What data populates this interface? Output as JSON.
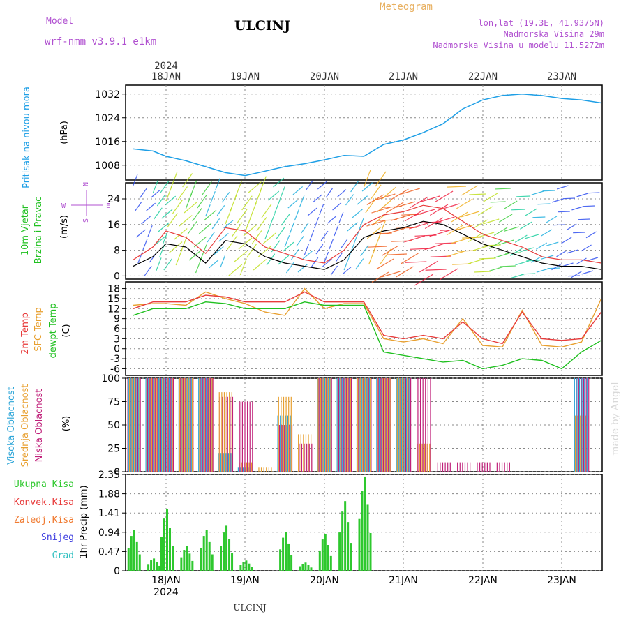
{
  "header": {
    "model_label": "Model",
    "model_name": "wrf-nmm_v3.9.1 e1km",
    "title": "ULCINJ",
    "meteogram": "Meteogram",
    "lonlat": "lon,lat (19.3E, 41.9375N)",
    "altitude": "Nadmorska Visina 29m",
    "model_altitude": "Nadmorska Visina u modelu 11.5272m"
  },
  "footer": {
    "station": "ULCINJ",
    "watermark": "made by Angel"
  },
  "time_axis": {
    "year": "2024",
    "days": [
      "18JAN",
      "19JAN",
      "20JAN",
      "21JAN",
      "22JAN",
      "23JAN"
    ]
  },
  "panels": {
    "pressure": {
      "label": "Pritisak na nivou mora",
      "unit": "(hPa)"
    },
    "wind": {
      "label1": "10m Vjetar",
      "label2": "Brzina i Pravac",
      "unit": "(m/s)",
      "compass_n": "N",
      "compass_e": "E",
      "compass_w": "W",
      "compass_s": "S"
    },
    "temp": {
      "label1": "2m Temp",
      "label2": "SFC Temp",
      "label3": "dewpt Temp",
      "unit": "(C)"
    },
    "cloud": {
      "label1": "Visoka Oblacnost",
      "label2": "Srednja Oblacnost",
      "label3": "Niska Oblacnost",
      "unit": "(%)"
    },
    "precip": {
      "unit": "1hr Precip (mm)",
      "legend": [
        "Ukupna Kisa",
        "Konvek.Kisa",
        "Zaledj.Kisa",
        "Snijeg",
        "Grad"
      ]
    }
  },
  "colors": {
    "pressure": "#1e9fe6",
    "temp2m": "#e83c3c",
    "sfc": "#e8a030",
    "dew": "#20c020",
    "high_cloud": "#2ea6d8",
    "mid_cloud": "#e8a030",
    "low_cloud": "#c0207a",
    "total_rain": "#2ec82e",
    "conv_rain": "#c84040",
    "frz_rain": "#f07a30",
    "snow": "#4040e0",
    "hail": "#30c0c0"
  },
  "chart_data": [
    {
      "type": "line",
      "title": "Pritisak na nivou mora",
      "ylabel": "(hPa)",
      "ylim": [
        1003,
        1035
      ],
      "yticks": [
        1008,
        1016,
        1024,
        1032
      ],
      "x": [
        "17JAN 14:00",
        "17JAN 20:00",
        "18JAN 00:00",
        "18JAN 06:00",
        "18JAN 12:00",
        "18JAN 18:00",
        "19JAN 00:00",
        "19JAN 06:00",
        "19JAN 12:00",
        "19JAN 18:00",
        "20JAN 00:00",
        "20JAN 06:00",
        "20JAN 12:00",
        "20JAN 18:00",
        "21JAN 00:00",
        "21JAN 06:00",
        "21JAN 12:00",
        "21JAN 18:00",
        "22JAN 00:00",
        "22JAN 06:00",
        "22JAN 12:00",
        "22JAN 18:00",
        "23JAN 00:00",
        "23JAN 06:00",
        "23JAN 12:00"
      ],
      "series": [
        {
          "name": "Pritisak na nivou mora",
          "values": [
            1013.5,
            1012.8,
            1011,
            1009.5,
            1007.5,
            1005.5,
            1004.5,
            1006,
            1007.5,
            1008.5,
            1009.8,
            1011.3,
            1011,
            1015,
            1016.5,
            1019,
            1022,
            1027,
            1030,
            1031.5,
            1032,
            1031.5,
            1030.5,
            1030,
            1029
          ]
        }
      ]
    },
    {
      "type": "line",
      "title": "10m Vjetar Brzina i Pravac",
      "ylabel": "(m/s)",
      "ylim": [
        -1,
        29
      ],
      "yticks": [
        0,
        8,
        16,
        24
      ],
      "x": [
        "17JAN 14:00",
        "17JAN 20:00",
        "18JAN 00:00",
        "18JAN 06:00",
        "18JAN 12:00",
        "18JAN 18:00",
        "19JAN 00:00",
        "19JAN 06:00",
        "19JAN 12:00",
        "19JAN 18:00",
        "20JAN 00:00",
        "20JAN 06:00",
        "20JAN 12:00",
        "20JAN 18:00",
        "21JAN 00:00",
        "21JAN 06:00",
        "21JAN 12:00",
        "21JAN 18:00",
        "22JAN 00:00",
        "22JAN 06:00",
        "22JAN 12:00",
        "22JAN 18:00",
        "23JAN 00:00",
        "23JAN 06:00",
        "23JAN 12:00"
      ],
      "series": [
        {
          "name": "Brzina",
          "values": [
            3,
            6,
            10,
            9,
            4,
            11,
            10,
            6,
            4,
            3,
            2,
            5,
            12,
            14,
            15,
            17,
            16,
            13,
            10,
            8,
            6,
            4,
            3,
            3,
            2
          ]
        },
        {
          "name": "Udari",
          "values": [
            5,
            9,
            14,
            12,
            7,
            15,
            14,
            9,
            7,
            5,
            4,
            8,
            16,
            19,
            20,
            22,
            21,
            17,
            13,
            11,
            9,
            6,
            5,
            5,
            4
          ]
        }
      ]
    },
    {
      "type": "line",
      "title": "2m Temp / SFC Temp / dewpt Temp",
      "ylabel": "(C)",
      "ylim": [
        -8,
        20
      ],
      "yticks": [
        -6,
        -3,
        0,
        3,
        6,
        9,
        12,
        15,
        18
      ],
      "x": [
        "17JAN 14:00",
        "17JAN 20:00",
        "18JAN 00:00",
        "18JAN 06:00",
        "18JAN 12:00",
        "18JAN 18:00",
        "19JAN 00:00",
        "19JAN 06:00",
        "19JAN 12:00",
        "19JAN 18:00",
        "20JAN 00:00",
        "20JAN 06:00",
        "20JAN 12:00",
        "20JAN 18:00",
        "21JAN 00:00",
        "21JAN 06:00",
        "21JAN 12:00",
        "21JAN 18:00",
        "22JAN 00:00",
        "22JAN 06:00",
        "22JAN 12:00",
        "22JAN 18:00",
        "23JAN 00:00",
        "23JAN 06:00",
        "23JAN 12:00"
      ],
      "series": [
        {
          "name": "2m Temp",
          "values": [
            12,
            14,
            14,
            14,
            16,
            15.5,
            14,
            14,
            14,
            17,
            14,
            14,
            14,
            4,
            3,
            4,
            3,
            8,
            3,
            1.5,
            11,
            3,
            2.5,
            3,
            11
          ]
        },
        {
          "name": "SFC Temp",
          "values": [
            13,
            13.5,
            13.5,
            13,
            17,
            15,
            13.5,
            11,
            10,
            18,
            12,
            13.5,
            13.5,
            3,
            2,
            3,
            1.5,
            9,
            1,
            0.5,
            11.5,
            1,
            0.5,
            2,
            15
          ]
        },
        {
          "name": "dewpt Temp",
          "values": [
            10,
            12,
            12,
            12,
            14,
            13.5,
            12,
            12,
            12,
            14,
            13,
            13,
            13,
            -1,
            -2,
            -3,
            -4,
            -3.5,
            -6,
            -5,
            -3,
            -3.5,
            -6,
            -1,
            2.5
          ]
        }
      ]
    },
    {
      "type": "bar",
      "title": "Oblacnost",
      "ylabel": "(%)",
      "ylim": [
        0,
        100
      ],
      "yticks": [
        0,
        25,
        50,
        75,
        100
      ],
      "x": [
        "17JAN 14:00",
        "17JAN 20:00",
        "18JAN 00:00",
        "18JAN 06:00",
        "18JAN 12:00",
        "18JAN 18:00",
        "19JAN 00:00",
        "19JAN 06:00",
        "19JAN 12:00",
        "19JAN 18:00",
        "20JAN 00:00",
        "20JAN 06:00",
        "20JAN 12:00",
        "20JAN 18:00",
        "21JAN 00:00",
        "21JAN 06:00",
        "21JAN 12:00",
        "21JAN 18:00",
        "22JAN 00:00",
        "22JAN 06:00",
        "22JAN 12:00",
        "22JAN 18:00",
        "23JAN 00:00",
        "23JAN 06:00",
        "23JAN 12:00"
      ],
      "series": [
        {
          "name": "Visoka Oblacnost",
          "values": [
            100,
            100,
            100,
            100,
            100,
            20,
            5,
            0,
            60,
            0,
            100,
            100,
            100,
            100,
            100,
            0,
            0,
            0,
            0,
            0,
            0,
            0,
            0,
            100,
            0
          ]
        },
        {
          "name": "Srednja Oblacnost",
          "values": [
            100,
            100,
            100,
            100,
            100,
            85,
            10,
            5,
            80,
            40,
            100,
            100,
            100,
            100,
            100,
            30,
            0,
            0,
            0,
            0,
            0,
            0,
            0,
            60,
            0
          ]
        },
        {
          "name": "Niska Oblacnost",
          "values": [
            100,
            100,
            100,
            100,
            100,
            80,
            75,
            0,
            50,
            30,
            100,
            100,
            100,
            100,
            100,
            100,
            10,
            10,
            10,
            10,
            0,
            0,
            0,
            100,
            0
          ]
        }
      ]
    },
    {
      "type": "bar",
      "title": "1hr Precip",
      "ylabel": "1hr Precip (mm)",
      "ylim": [
        0,
        2.35
      ],
      "yticks": [
        0,
        0.47,
        0.94,
        1.41,
        1.88,
        2.35
      ],
      "x": [
        "17JAN 14:00",
        "17JAN 20:00",
        "18JAN 00:00",
        "18JAN 06:00",
        "18JAN 12:00",
        "18JAN 18:00",
        "19JAN 00:00",
        "19JAN 06:00",
        "19JAN 12:00",
        "19JAN 18:00",
        "20JAN 00:00",
        "20JAN 06:00",
        "20JAN 12:00",
        "20JAN 18:00",
        "21JAN 00:00",
        "21JAN 06:00",
        "21JAN 12:00",
        "21JAN 18:00",
        "22JAN 00:00",
        "22JAN 06:00",
        "22JAN 12:00",
        "22JAN 18:00",
        "23JAN 00:00",
        "23JAN 06:00",
        "23JAN 12:00"
      ],
      "series": [
        {
          "name": "Ukupna Kisa",
          "values": [
            1.0,
            0.3,
            1.5,
            0.6,
            1.0,
            1.1,
            0.25,
            0,
            0.95,
            0.2,
            0.9,
            1.7,
            2.3,
            0,
            0,
            0,
            0,
            0,
            0,
            0,
            0,
            0,
            0,
            0,
            0
          ]
        },
        {
          "name": "Konvek.Kisa",
          "values": [
            0,
            0,
            0,
            0,
            0,
            0,
            0,
            0,
            0,
            0,
            0,
            0,
            0,
            0,
            0,
            0,
            0,
            0,
            0,
            0,
            0,
            0,
            0,
            0,
            0
          ]
        },
        {
          "name": "Zaledj.Kisa",
          "values": [
            0,
            0,
            0,
            0,
            0,
            0,
            0,
            0,
            0,
            0,
            0,
            0,
            0,
            0,
            0,
            0,
            0,
            0,
            0,
            0,
            0,
            0,
            0,
            0,
            0
          ]
        },
        {
          "name": "Snijeg",
          "values": [
            0,
            0,
            0,
            0,
            0,
            0,
            0,
            0,
            0,
            0,
            0,
            0,
            0,
            0,
            0,
            0,
            0,
            0,
            0,
            0,
            0,
            0,
            0,
            0,
            0
          ]
        },
        {
          "name": "Grad",
          "values": [
            0,
            0,
            0,
            0,
            0,
            0,
            0,
            0,
            0,
            0,
            0,
            0,
            0,
            0,
            0,
            0,
            0,
            0,
            0,
            0,
            0,
            0,
            0,
            0,
            0
          ]
        }
      ]
    }
  ]
}
